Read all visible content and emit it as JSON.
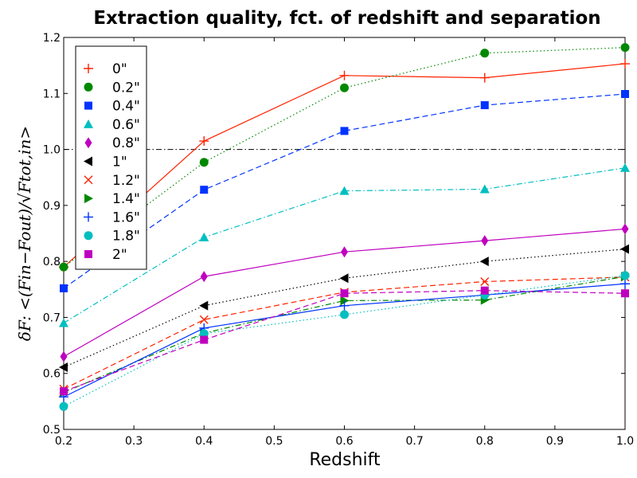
{
  "chart_data": {
    "type": "line",
    "title": "Extraction quality, fct. of redshift and separation",
    "xlabel": "Redshift",
    "ylabel": "δF: <(Fin−Fout)/√Ftot,in>",
    "xlim": [
      0.2,
      1.0
    ],
    "ylim": [
      0.5,
      1.2
    ],
    "xticks": [
      0.2,
      0.3,
      0.4,
      0.5,
      0.6,
      0.7,
      0.8,
      0.9,
      1.0
    ],
    "xtick_labels": [
      "0.2",
      "0.3",
      "0.4",
      "0.5",
      "0.6",
      "0.7",
      "0.8",
      "0.9",
      "1.0"
    ],
    "yticks": [
      0.5,
      0.6,
      0.7,
      0.8,
      0.9,
      1.0,
      1.1,
      1.2
    ],
    "ytick_labels": [
      "0.5",
      "0.6",
      "0.7",
      "0.8",
      "0.9",
      "1.0",
      "1.1",
      "1.2"
    ],
    "reference_line": {
      "y": 1.0,
      "style": "dashdot",
      "color": "#000000"
    },
    "legend_position": "top-left",
    "x": [
      0.2,
      0.4,
      0.6,
      0.8,
      1.0
    ],
    "series": [
      {
        "name": "0\"",
        "marker": "plus",
        "linestyle": "solid",
        "color": "#ff2200",
        "values": [
          0.79,
          1.015,
          1.132,
          1.128,
          1.153
        ]
      },
      {
        "name": "0.2\"",
        "marker": "circle",
        "linestyle": "dotted",
        "color": "#008800",
        "values": [
          0.79,
          0.977,
          1.11,
          1.172,
          1.182
        ]
      },
      {
        "name": "0.4\"",
        "marker": "square",
        "linestyle": "dashed",
        "color": "#0033ff",
        "values": [
          0.752,
          0.928,
          1.033,
          1.079,
          1.099
        ]
      },
      {
        "name": "0.6\"",
        "marker": "triangle-up",
        "linestyle": "dashdot",
        "color": "#00bfbf",
        "values": [
          0.69,
          0.843,
          0.926,
          0.929,
          0.967
        ]
      },
      {
        "name": "0.8\"",
        "marker": "diamond",
        "linestyle": "solid",
        "color": "#bf00bf",
        "values": [
          0.63,
          0.773,
          0.817,
          0.837,
          0.858
        ]
      },
      {
        "name": "1\"",
        "marker": "triangle-left",
        "linestyle": "dotted",
        "color": "#000000",
        "values": [
          0.611,
          0.721,
          0.77,
          0.8,
          0.822
        ]
      },
      {
        "name": "1.2\"",
        "marker": "x",
        "linestyle": "dashed",
        "color": "#ff2200",
        "values": [
          0.572,
          0.696,
          0.745,
          0.764,
          0.772
        ]
      },
      {
        "name": "1.4\"",
        "marker": "triangle-right",
        "linestyle": "dashdot",
        "color": "#008800",
        "values": [
          0.566,
          0.672,
          0.73,
          0.731,
          0.773
        ]
      },
      {
        "name": "1.6\"",
        "marker": "plus",
        "linestyle": "solid",
        "color": "#0033ff",
        "values": [
          0.558,
          0.681,
          0.721,
          0.74,
          0.76
        ]
      },
      {
        "name": "1.8\"",
        "marker": "circle",
        "linestyle": "dotted",
        "color": "#00bfbf",
        "values": [
          0.541,
          0.671,
          0.705,
          0.74,
          0.775
        ]
      },
      {
        "name": "2\"",
        "marker": "square",
        "linestyle": "dashed",
        "color": "#bf00bf",
        "values": [
          0.568,
          0.66,
          0.743,
          0.748,
          0.743
        ]
      }
    ]
  }
}
